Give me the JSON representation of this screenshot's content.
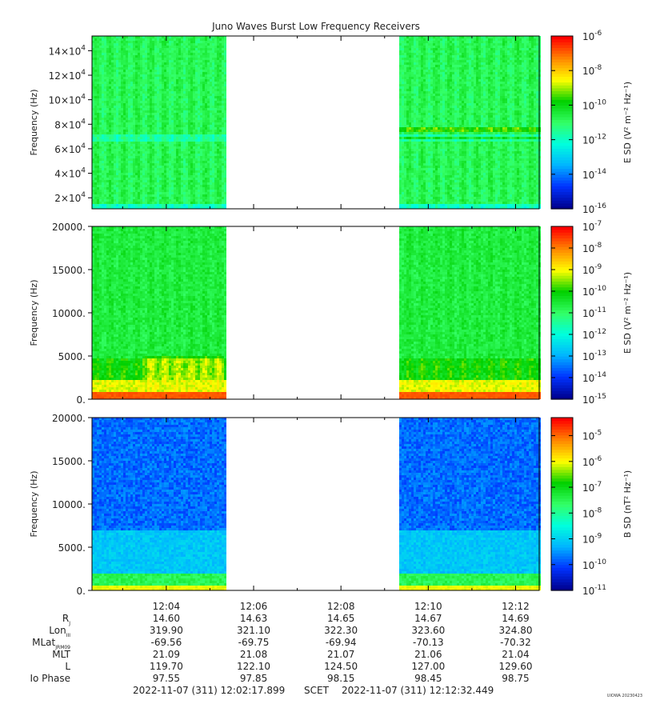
{
  "title": "Juno Waves Burst Low Frequency Receivers",
  "colors": {
    "cmap": [
      "#00008f",
      "#0033ff",
      "#00b4ff",
      "#00ffdd",
      "#33ff66",
      "#00d000",
      "#ffff00",
      "#ff8800",
      "#ff0000"
    ]
  },
  "chart_data": [
    {
      "type": "heatmap",
      "panel": "top",
      "ylabel": "Frequency (Hz)",
      "yticks": [
        {
          "mant": "2",
          "exp": "4",
          "value": 20000
        },
        {
          "mant": "4",
          "exp": "4",
          "value": 40000
        },
        {
          "mant": "6",
          "exp": "4",
          "value": 60000
        },
        {
          "mant": "8",
          "exp": "4",
          "value": 80000
        },
        {
          "mant": "10",
          "exp": "4",
          "value": 100000
        },
        {
          "mant": "12",
          "exp": "4",
          "value": 120000
        },
        {
          "mant": "14",
          "exp": "4",
          "value": 140000
        }
      ],
      "ylim": [
        11000,
        152000
      ],
      "xlim": [
        "12:02:17.899",
        "12:12:32.449"
      ],
      "data_gap": [
        "12:05:25",
        "12:09:20"
      ],
      "baseline_level": 0.52,
      "features": [
        "Bright lines near 70 kHz and 78 kHz after gap",
        "Vertical periodic striations"
      ],
      "colorbar": {
        "label": "E SD",
        "units": "(V² m⁻² Hz⁻¹)",
        "log_min": -16,
        "log_max": -6,
        "ticks": [
          {
            "base": "10",
            "exp": "-6"
          },
          {
            "base": "10",
            "exp": "-8"
          },
          {
            "base": "10",
            "exp": "-10"
          },
          {
            "base": "10",
            "exp": "-12"
          },
          {
            "base": "10",
            "exp": "-14"
          },
          {
            "base": "10",
            "exp": "-16"
          }
        ]
      }
    },
    {
      "type": "heatmap",
      "panel": "middle",
      "ylabel": "Frequency (Hz)",
      "yticks": [
        "0.",
        "5000.",
        "10000.",
        "15000.",
        "20000."
      ],
      "ylim": [
        0,
        20000
      ],
      "xlim": [
        "12:02:17.899",
        "12:12:32.449"
      ],
      "data_gap": [
        "12:05:25",
        "12:09:20"
      ],
      "baseline_level": 0.55,
      "features": [
        "Intense emission below ~1 kHz",
        "Green/yellow patch near 4 kHz around 12:04"
      ],
      "colorbar": {
        "label": "E SD",
        "units": "(V² m⁻² Hz⁻¹)",
        "log_min": -15,
        "log_max": -7,
        "ticks": [
          {
            "base": "10",
            "exp": "-7"
          },
          {
            "base": "10",
            "exp": "-8"
          },
          {
            "base": "10",
            "exp": "-9"
          },
          {
            "base": "10",
            "exp": "-10"
          },
          {
            "base": "10",
            "exp": "-11"
          },
          {
            "base": "10",
            "exp": "-12"
          },
          {
            "base": "10",
            "exp": "-13"
          },
          {
            "base": "10",
            "exp": "-14"
          },
          {
            "base": "10",
            "exp": "-15"
          }
        ]
      }
    },
    {
      "type": "heatmap",
      "panel": "bottom",
      "ylabel": "Frequency (Hz)",
      "yticks": [
        "0.",
        "5000.",
        "10000.",
        "15000.",
        "20000."
      ],
      "ylim": [
        0,
        20000
      ],
      "xlim": [
        "12:02:17.899",
        "12:12:32.449"
      ],
      "data_gap": [
        "12:05:25",
        "12:09:20"
      ],
      "baseline_level": 0.18,
      "features": [
        "Intense low-frequency band below ~1 kHz"
      ],
      "colorbar": {
        "label": "B SD",
        "units": "(nT² Hz⁻¹)",
        "log_min": -11,
        "log_max": -4.3,
        "ticks": [
          {
            "base": "10",
            "exp": "-5"
          },
          {
            "base": "10",
            "exp": "-6"
          },
          {
            "base": "10",
            "exp": "-7"
          },
          {
            "base": "10",
            "exp": "-8"
          },
          {
            "base": "10",
            "exp": "-9"
          },
          {
            "base": "10",
            "exp": "-10"
          },
          {
            "base": "10",
            "exp": "-11"
          }
        ]
      }
    }
  ],
  "xaxis": {
    "ticks": [
      "12:04",
      "12:06",
      "12:08",
      "12:10",
      "12:12"
    ],
    "ephemeris": [
      {
        "label": "R",
        "sub": "J",
        "values": [
          "14.60",
          "14.63",
          "14.65",
          "14.67",
          "14.69"
        ]
      },
      {
        "label": "Lon",
        "sub": "III",
        "values": [
          "319.90",
          "321.10",
          "322.30",
          "323.60",
          "324.80"
        ]
      },
      {
        "label": "MLat",
        "sub": "JRM09",
        "values": [
          "-69.56",
          "-69.75",
          "-69.94",
          "-70.13",
          "-70.32"
        ]
      },
      {
        "label": "MLT",
        "sub": "",
        "values": [
          "21.09",
          "21.08",
          "21.07",
          "21.06",
          "21.04"
        ]
      },
      {
        "label": "L",
        "sub": "",
        "values": [
          "119.70",
          "122.10",
          "124.50",
          "127.00",
          "129.60"
        ]
      },
      {
        "label": "Io Phase",
        "sub": "",
        "values": [
          "97.55",
          "97.85",
          "98.15",
          "98.45",
          "98.75"
        ]
      }
    ]
  },
  "footer": {
    "start": "2022-11-07 (311) 12:02:17.899",
    "center": "SCET",
    "end": "2022-11-07 (311) 12:12:32.449"
  },
  "credit": "UIOWA 20230423"
}
